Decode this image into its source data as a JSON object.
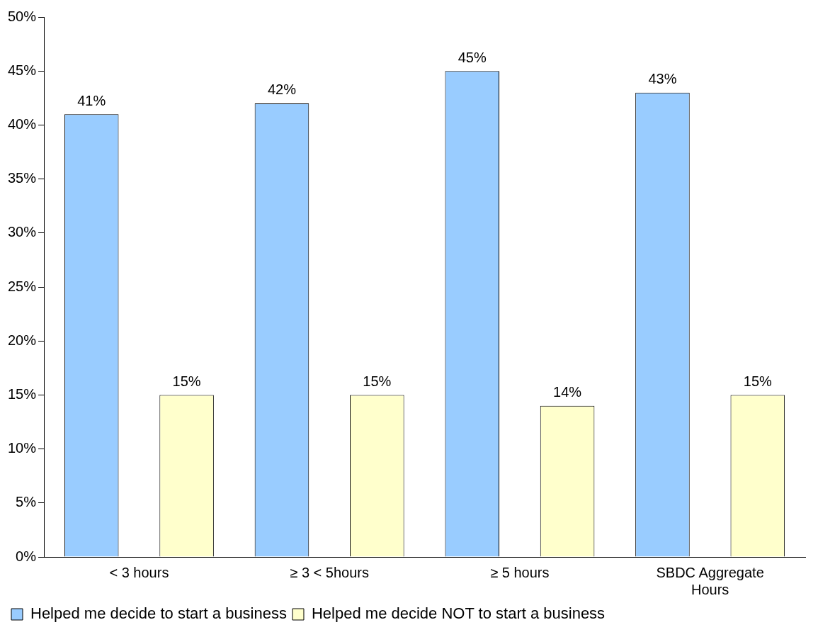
{
  "chart_data": {
    "type": "bar",
    "categories": [
      "< 3 hours",
      "≥ 3 < 5hours",
      "≥ 5 hours",
      "SBDC Aggregate Hours"
    ],
    "series": [
      {
        "name": "Helped me decide to start a business",
        "color": "#99ccff",
        "values": [
          41,
          42,
          45,
          43
        ],
        "value_labels": [
          "41%",
          "42%",
          "45%",
          "43%"
        ]
      },
      {
        "name": "Helped me decide NOT to start a business",
        "color": "#ffffcc",
        "values": [
          15,
          15,
          14,
          15
        ],
        "value_labels": [
          "15%",
          "15%",
          "14%",
          "15%"
        ]
      }
    ],
    "ylim": [
      0,
      50
    ],
    "yticks": [
      {
        "value": 0,
        "label": "0%"
      },
      {
        "value": 5,
        "label": "5%"
      },
      {
        "value": 10,
        "label": "10%"
      },
      {
        "value": 15,
        "label": "15%"
      },
      {
        "value": 20,
        "label": "20%"
      },
      {
        "value": 25,
        "label": "25%"
      },
      {
        "value": 30,
        "label": "30%"
      },
      {
        "value": 35,
        "label": "35%"
      },
      {
        "value": 40,
        "label": "40%"
      },
      {
        "value": 45,
        "label": "45%"
      },
      {
        "value": 50,
        "label": "50%"
      }
    ],
    "grid": false,
    "legend": "bottom"
  }
}
